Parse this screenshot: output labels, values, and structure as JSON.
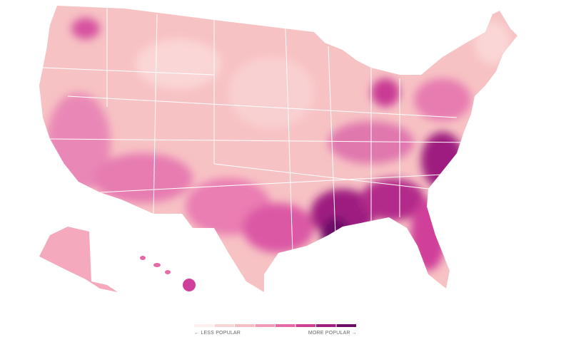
{
  "legend": {
    "less_label": "← LESS POPULAR",
    "more_label": "MORE POPULAR →",
    "colors": [
      "#fdf0ef",
      "#f9d6d6",
      "#f6bcc3",
      "#f09cb7",
      "#e56aa8",
      "#cf3f98",
      "#9e1d80",
      "#6a0d68"
    ]
  }
}
